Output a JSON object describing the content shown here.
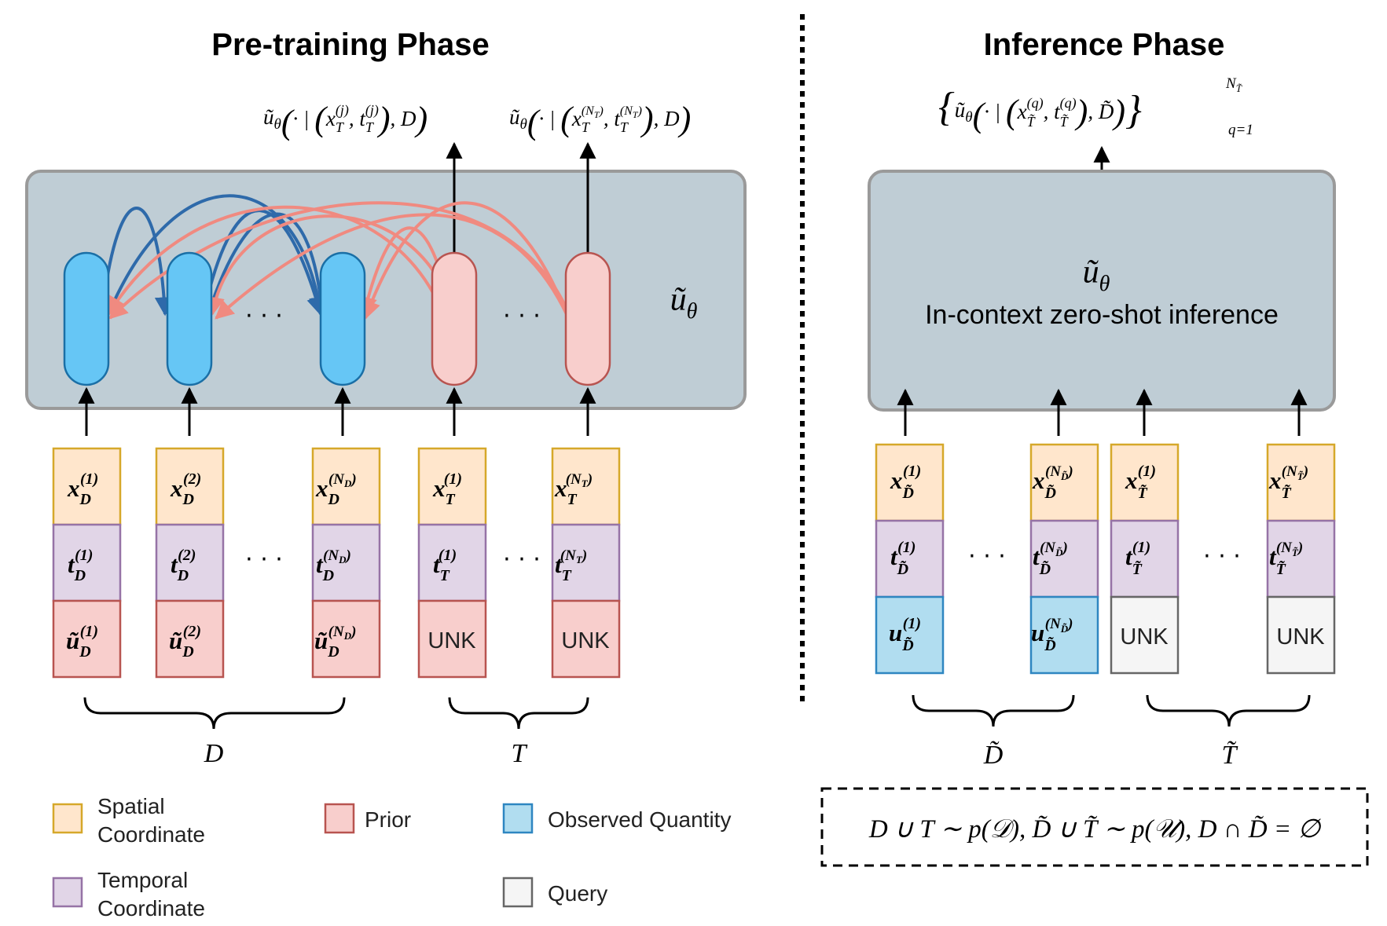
{
  "titles": {
    "pretraining": "Pre-training Phase",
    "inference": "Inference Phase"
  },
  "pretraining": {
    "output_labels": [
      "ũθ(· | (xT(j), tT(j)), D)",
      "ũθ(· | (xT(NT), tT(NT)), D)"
    ],
    "model_label": "ũθ",
    "ellipsis": "· · ·",
    "columns": [
      {
        "x": "x_D^(1)",
        "t": "t_D^(1)",
        "u": "ũ_D^(1)"
      },
      {
        "x": "x_D^(2)",
        "t": "t_D^(2)",
        "u": "ũ_D^(2)"
      },
      {
        "x": "x_D^(N_D)",
        "t": "t_D^(N_D)",
        "u": "ũ_D^(N_D)"
      },
      {
        "x": "x_T^(1)",
        "t": "t_T^(1)",
        "u": "UNK"
      },
      {
        "x": "x_T^(N_T)",
        "t": "t_T^(N_T)",
        "u": "UNK"
      }
    ],
    "brace_labels": [
      "D",
      "T"
    ]
  },
  "inference": {
    "output_label": "{ũθ(· | (x_T̃^(q), t_T̃^(q)), D̃)}_{q=1}^{N_T̃}",
    "model_label": "ũθ",
    "model_subtitle": "In-context zero-shot inference",
    "columns": [
      {
        "x": "x_D̃^(1)",
        "t": "t_D̃^(1)",
        "u": "u_D̃^(1)"
      },
      {
        "x": "x_D̃^(N_D̃)",
        "t": "t_D̃^(N_D̃)",
        "u": "u_D̃^(N_D̃)"
      },
      {
        "x": "x_T̃^(1)",
        "t": "t_T̃^(1)",
        "u": "UNK"
      },
      {
        "x": "x_T̃^(N_T̃)",
        "t": "t_T̃^(N_T̃)",
        "u": "UNK"
      }
    ],
    "brace_labels": [
      "D̃",
      "T̃"
    ],
    "equation": "D ∪ T ∼ p(𝒟), D̃ ∪ T̃ ∼ p(𝒰), D ∩ D̃ = ∅"
  },
  "legend": [
    {
      "label_lines": [
        "Spatial",
        "Coordinate"
      ],
      "color": "#ffe6cc",
      "border": "#d6a82a"
    },
    {
      "label_lines": [
        "Prior"
      ],
      "color": "#f8cecc",
      "border": "#b85450"
    },
    {
      "label_lines": [
        "Observed Quantity"
      ],
      "color": "#b1ddf0",
      "border": "#2e86c1"
    },
    {
      "label_lines": [
        "Temporal",
        "Coordinate"
      ],
      "color": "#e1d5e7",
      "border": "#9673a6"
    },
    {
      "label_lines": [
        "Query"
      ],
      "color": "#f5f5f5",
      "border": "#666666"
    }
  ],
  "colors": {
    "model_box": "#bfcdd5",
    "blue_token": "#66c6f5",
    "pink_token": "#f8cecc",
    "blue_arc": "#2e6aaa",
    "pink_arc": "#f08a80"
  }
}
